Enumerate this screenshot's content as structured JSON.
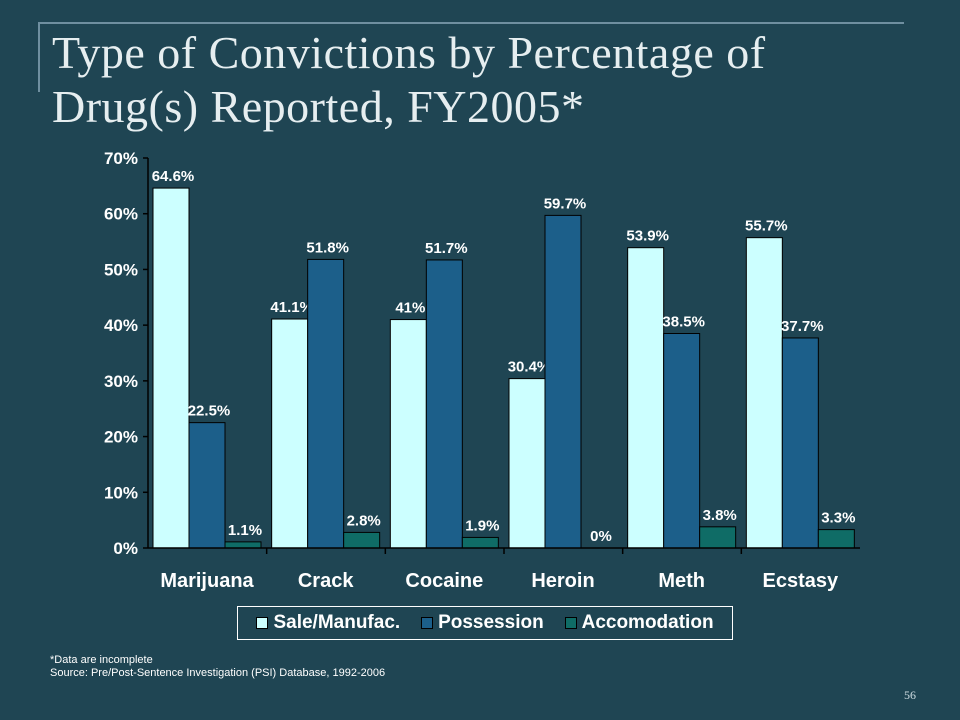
{
  "slide": {
    "title": "Type of Convictions by Percentage of Drug(s) Reported, FY2005*",
    "footnote": "*Data are incomplete",
    "source": "Source:  Pre/Post-Sentence Investigation (PSI) Database, 1992-2006",
    "page_number": "56"
  },
  "chart_data": {
    "type": "bar",
    "title": "",
    "xlabel": "",
    "ylabel": "",
    "ylim": [
      0,
      70
    ],
    "yticks": [
      0,
      10,
      20,
      30,
      40,
      50,
      60,
      70
    ],
    "ytick_labels": [
      "0%",
      "10%",
      "20%",
      "30%",
      "40%",
      "50%",
      "60%",
      "70%"
    ],
    "categories": [
      "Marijuana",
      "Crack",
      "Cocaine",
      "Heroin",
      "Meth",
      "Ecstasy"
    ],
    "series": [
      {
        "name": "Sale/Manufac.",
        "color": "#ccffff",
        "values": [
          64.6,
          41.1,
          41.0,
          30.4,
          53.9,
          55.7
        ],
        "labels": [
          "64.6%",
          "41.1%",
          "41%",
          "30.4%",
          "53.9%",
          "55.7%"
        ]
      },
      {
        "name": "Possession",
        "color": "#1c5f8a",
        "values": [
          22.5,
          51.8,
          51.7,
          59.7,
          38.5,
          37.7
        ],
        "labels": [
          "22.5%",
          "51.8%",
          "51.7%",
          "59.7%",
          "38.5%",
          "37.7%"
        ]
      },
      {
        "name": "Accomodation",
        "color": "#0f6c66",
        "values": [
          1.1,
          2.8,
          1.9,
          0,
          3.8,
          3.3
        ],
        "labels": [
          "1.1%",
          "2.8%",
          "1.9%",
          "0%",
          "3.8%",
          "3.3%"
        ]
      }
    ],
    "grid": false,
    "legend_position": "bottom"
  }
}
